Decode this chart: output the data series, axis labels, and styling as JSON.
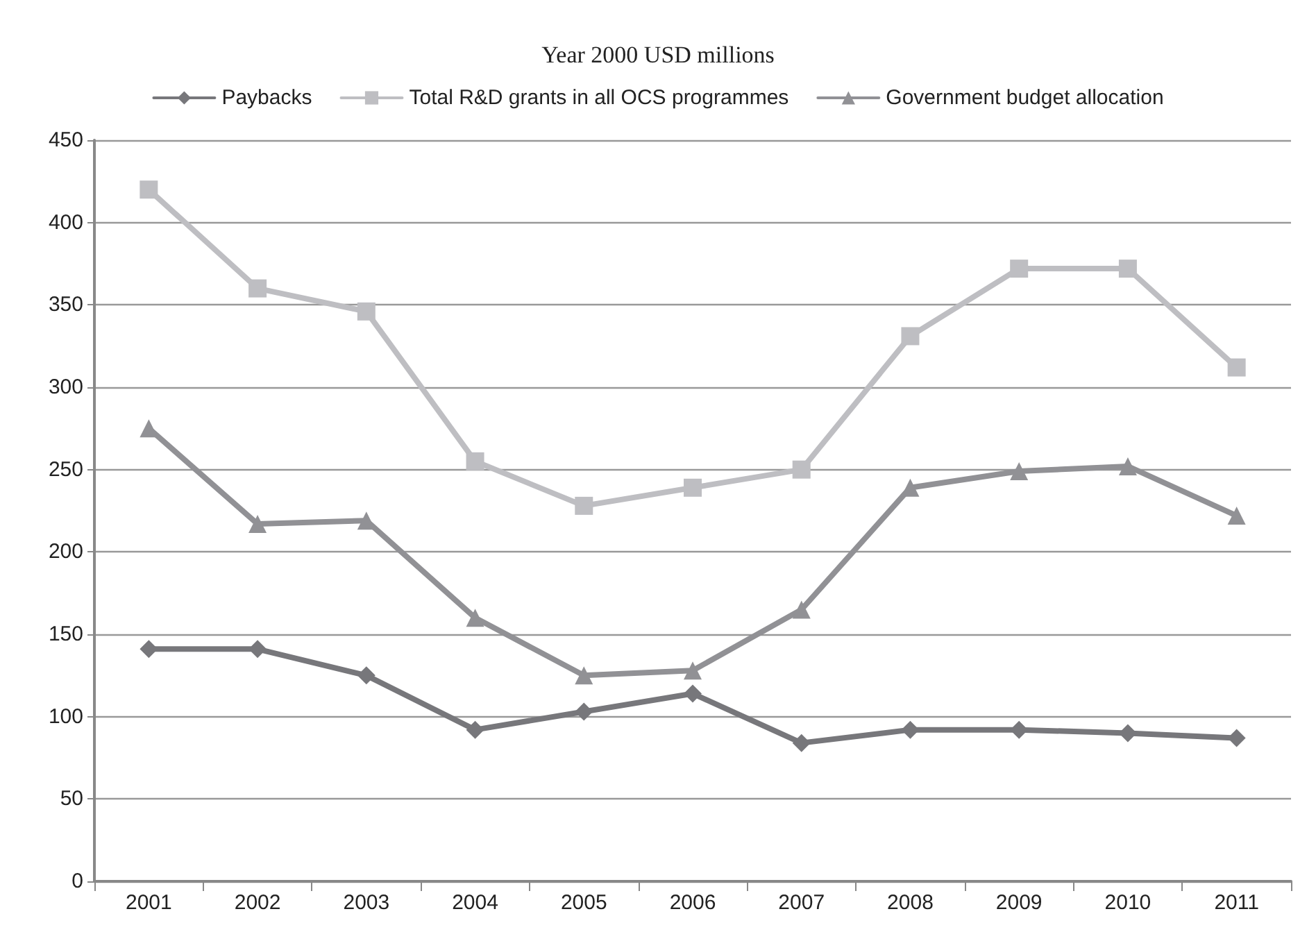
{
  "chart_data": {
    "type": "line",
    "title": "Year 2000 USD millions",
    "categories": [
      "2001",
      "2002",
      "2003",
      "2004",
      "2005",
      "2006",
      "2007",
      "2008",
      "2009",
      "2010",
      "2011"
    ],
    "series": [
      {
        "name": "Paybacks",
        "color": "#77777b",
        "marker": "diamond",
        "values": [
          141,
          141,
          125,
          92,
          103,
          114,
          84,
          92,
          92,
          90,
          87
        ]
      },
      {
        "name": "Total R&D grants in all OCS programmes",
        "color": "#bebec2",
        "marker": "square",
        "values": [
          420,
          360,
          346,
          255,
          228,
          239,
          250,
          331,
          372,
          372,
          312
        ]
      },
      {
        "name": "Government budget allocation",
        "color": "#919195",
        "marker": "triangle",
        "values": [
          275,
          217,
          219,
          160,
          125,
          128,
          165,
          239,
          249,
          252,
          222
        ]
      }
    ],
    "ylim": [
      0,
      450
    ],
    "yticks": [
      0,
      50,
      100,
      150,
      200,
      250,
      300,
      350,
      400,
      450
    ],
    "grid": "y",
    "legend": "top",
    "line_style": "solid"
  }
}
